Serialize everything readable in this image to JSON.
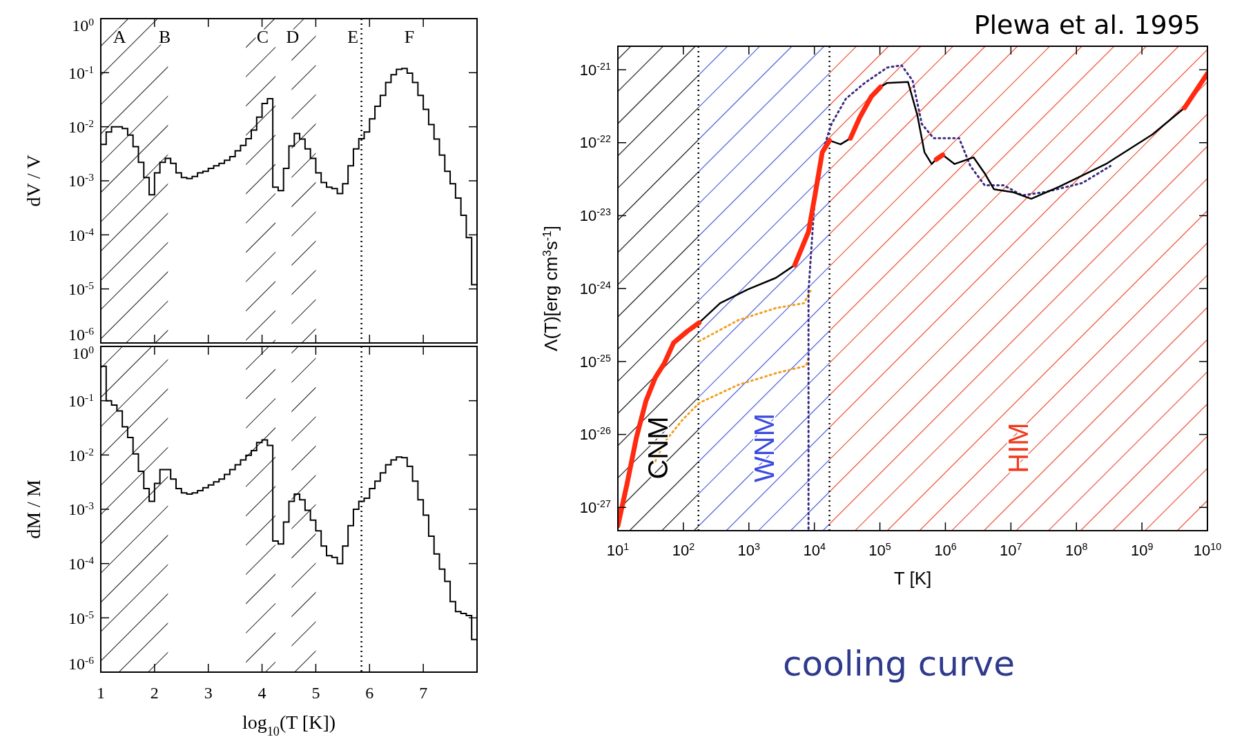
{
  "chart_data": [
    {
      "type": "histogram",
      "ylabel": "dV / V",
      "color": "#000000",
      "log": "y",
      "xlim": [
        1,
        8
      ],
      "ylim": [
        1e-06,
        1
      ],
      "tick_labels": "y",
      "xticks": [
        1,
        2,
        3,
        4,
        5,
        6,
        7
      ],
      "yticks": [
        {
          "value": 1,
          "label": "10$^{0}$"
        },
        {
          "value": 0.1,
          "label": "10$^{-1}$"
        },
        {
          "value": 0.01,
          "label": "10$^{-2}$"
        },
        {
          "value": 0.001,
          "label": "10$^{-3}$"
        },
        {
          "value": 0.0001,
          "label": "10$^{-4}$"
        },
        {
          "value": 1e-05,
          "label": "10$^{-5}$"
        },
        {
          "value": 1e-06,
          "label": "10$^{-6}$"
        }
      ],
      "bins": [
        1,
        1.1,
        1.2,
        1.3,
        1.4,
        1.5,
        1.6,
        1.7,
        1.8,
        1.9,
        2,
        2.1,
        2.2,
        2.3,
        2.4,
        2.5,
        2.6,
        2.7,
        2.8,
        2.9,
        3,
        3.1,
        3.2,
        3.3,
        3.4,
        3.5,
        3.6,
        3.7,
        3.8,
        3.9,
        4,
        4.1,
        4.2,
        4.3,
        4.4,
        4.5,
        4.6,
        4.7,
        4.8,
        4.9,
        5,
        5.1,
        5.2,
        5.3,
        5.4,
        5.5,
        5.6,
        5.7,
        5.8,
        5.9,
        6,
        6.1,
        6.2,
        6.3,
        6.4,
        6.5,
        6.6,
        6.7,
        6.8,
        6.9,
        7,
        7.1,
        7.2,
        7.3,
        7.4,
        7.5,
        7.6,
        7.7,
        7.8,
        7.9,
        8
      ],
      "values": [
        0.0047,
        0.008,
        0.01,
        0.01,
        0.0093,
        0.007,
        0.0043,
        0.0022,
        0.00115,
        0.00055,
        0.0014,
        0.0022,
        0.0026,
        0.0021,
        0.0014,
        0.00115,
        0.0011,
        0.0012,
        0.0014,
        0.0015,
        0.0017,
        0.0019,
        0.0021,
        0.0024,
        0.0028,
        0.0036,
        0.0045,
        0.006,
        0.0087,
        0.015,
        0.027,
        0.033,
        0.00076,
        0.00066,
        0.0017,
        0.0044,
        0.0075,
        0.0059,
        0.0039,
        0.0026,
        0.0014,
        0.00093,
        0.00076,
        0.00072,
        0.00058,
        0.00088,
        0.0019,
        0.0039,
        0.006,
        0.008,
        0.014,
        0.024,
        0.038,
        0.066,
        0.092,
        0.115,
        0.12,
        0.098,
        0.066,
        0.038,
        0.021,
        0.011,
        0.0059,
        0.003,
        0.0015,
        0.00088,
        0.00048,
        0.00023,
        8.9e-05,
        1.2e-05
      ],
      "bands": [
        {
          "axis": "x",
          "from": 1,
          "to": 2.25,
          "color": "#000000"
        },
        {
          "axis": "x",
          "from": 3.7,
          "to": 4.25,
          "color": "#000000"
        },
        {
          "axis": "x",
          "from": 4.55,
          "to": 5,
          "color": "#000000"
        }
      ],
      "ref_lines": [
        {
          "axis": "x",
          "value": 5.85,
          "line_style": "dotted",
          "color": "#000000"
        }
      ],
      "annotations": [
        "A",
        "B",
        "C",
        "D",
        "E",
        "F"
      ]
    },
    {
      "type": "histogram",
      "ylabel": "dM / M",
      "xlabel": "log$_{10}$(T [K])",
      "color": "#000000",
      "log": "y",
      "xlim": [
        1,
        8
      ],
      "ylim": [
        1e-06,
        1
      ],
      "xticks": [
        1,
        2,
        3,
        4,
        5,
        6,
        7
      ],
      "yticks": [
        {
          "value": 1,
          "label": "10$^{0}$"
        },
        {
          "value": 0.1,
          "label": "10$^{-1}$"
        },
        {
          "value": 0.01,
          "label": "10$^{-2}$"
        },
        {
          "value": 0.001,
          "label": "10$^{-3}$"
        },
        {
          "value": 0.0001,
          "label": "10$^{-4}$"
        },
        {
          "value": 1e-05,
          "label": "10$^{-5}$"
        },
        {
          "value": 1e-06,
          "label": "10$^{-6}$"
        }
      ],
      "bins": [
        1,
        1.1,
        1.2,
        1.3,
        1.4,
        1.5,
        1.6,
        1.7,
        1.8,
        1.9,
        2,
        2.1,
        2.2,
        2.3,
        2.4,
        2.5,
        2.6,
        2.7,
        2.8,
        2.9,
        3,
        3.1,
        3.2,
        3.3,
        3.4,
        3.5,
        3.6,
        3.7,
        3.8,
        3.9,
        4,
        4.1,
        4.2,
        4.3,
        4.4,
        4.5,
        4.6,
        4.7,
        4.8,
        4.9,
        5,
        5.1,
        5.2,
        5.3,
        5.4,
        5.5,
        5.6,
        5.7,
        5.8,
        5.9,
        6,
        6.1,
        6.2,
        6.3,
        6.4,
        6.5,
        6.6,
        6.7,
        6.8,
        6.9,
        7,
        7.1,
        7.2,
        7.3,
        7.4,
        7.5,
        7.6,
        7.7,
        7.8,
        7.9,
        8
      ],
      "values": [
        0.43,
        0.1,
        0.083,
        0.065,
        0.033,
        0.021,
        0.0105,
        0.005,
        0.0024,
        0.0014,
        0.003,
        0.0054,
        0.0054,
        0.0036,
        0.0024,
        0.002,
        0.0019,
        0.002,
        0.0022,
        0.0025,
        0.0028,
        0.0032,
        0.0036,
        0.0044,
        0.0054,
        0.0066,
        0.0081,
        0.0099,
        0.012,
        0.017,
        0.019,
        0.015,
        0.00026,
        0.00023,
        0.00058,
        0.0014,
        0.0019,
        0.0015,
        0.00096,
        0.00063,
        0.0004,
        0.00021,
        0.00014,
        0.00013,
        0.0001,
        0.00021,
        0.0005,
        0.001,
        0.0014,
        0.0016,
        0.0024,
        0.0033,
        0.0047,
        0.0066,
        0.0081,
        0.0092,
        0.0089,
        0.0062,
        0.0033,
        0.0015,
        0.00078,
        0.00032,
        0.00015,
        7.9e-05,
        4.7e-05,
        2e-05,
        1.3e-05,
        1.2e-05,
        1.1e-05,
        4e-06
      ],
      "bands": [
        {
          "axis": "x",
          "from": 1,
          "to": 2.25,
          "color": "#000000"
        },
        {
          "axis": "x",
          "from": 3.7,
          "to": 4.25,
          "color": "#000000"
        },
        {
          "axis": "x",
          "from": 4.55,
          "to": 5,
          "color": "#000000"
        }
      ],
      "ref_lines": [
        {
          "axis": "x",
          "value": 5.85,
          "line_style": "dotted",
          "color": "#000000"
        }
      ]
    },
    {
      "type": "line",
      "xlabel": "T [K]",
      "ylabel": "Λ(T)[erg cm$^{3}$s$^{-1}$]",
      "log": "xy",
      "xlim": [
        10,
        10000000000.0
      ],
      "ylim": [
        4.8e-28,
        2.1e-21
      ],
      "xticks": [
        {
          "value": 10,
          "label": "10$^{1}$"
        },
        {
          "value": 100,
          "label": "10$^{2}$"
        },
        {
          "value": 1000,
          "label": "10$^{3}$"
        },
        {
          "value": 10000,
          "label": "10$^{4}$"
        },
        {
          "value": 100000,
          "label": "10$^{5}$"
        },
        {
          "value": 1000000,
          "label": "10$^{6}$"
        },
        {
          "value": 10000000.0,
          "label": "10$^{7}$"
        },
        {
          "value": 100000000.0,
          "label": "10$^{8}$"
        },
        {
          "value": 1000000000.0,
          "label": "10$^{9}$"
        },
        {
          "value": 10000000000.0,
          "label": "10$^{10}$"
        }
      ],
      "yticks": [
        {
          "value": 1e-27,
          "label": "10$^{-27}$"
        },
        {
          "value": 1e-26,
          "label": "10$^{-26}$"
        },
        {
          "value": 1e-25,
          "label": "10$^{-25}$"
        },
        {
          "value": 1e-24,
          "label": "10$^{-24}$"
        },
        {
          "value": 1e-23,
          "label": "10$^{-23}$"
        },
        {
          "value": 1e-22,
          "label": "10$^{-22}$"
        },
        {
          "value": 1e-21,
          "label": "10$^{-21}$"
        }
      ],
      "bands": [
        {
          "axis": "x",
          "from": 10,
          "to": 170,
          "label": "CNM",
          "color": "#000000"
        },
        {
          "axis": "x",
          "from": 170,
          "to": 17000,
          "label": "WNM",
          "color": "#3a4ae0"
        },
        {
          "axis": "x",
          "from": 17000,
          "to": 10000000000.0,
          "label": "HIM",
          "color": "#f03a20"
        }
      ],
      "ref_lines": [
        {
          "axis": "x",
          "value": 170,
          "line_style": "dotted",
          "color": "#000000"
        },
        {
          "axis": "x",
          "value": 17000,
          "line_style": "dotted",
          "color": "#000000"
        }
      ],
      "series": [
        {
          "color": "#f0a020",
          "line_style": "dotted",
          "x": [
            174,
            692,
            2570,
            6920,
            8710
          ],
          "values": [
            1.9e-25,
            3.7e-25,
            5.4e-25,
            6.3e-25,
            9.3e-25
          ]
        },
        {
          "color": "#f0a020",
          "line_style": "dotted",
          "x": [
            37.2,
            51.3,
            97.7,
            174,
            692,
            2570,
            7410,
            8130
          ],
          "values": [
            4.3e-27,
            7.8e-27,
            1.6e-26,
            2.7e-26,
            4.8e-26,
            6.9e-26,
            8.7e-26,
            1.1e-25
          ]
        },
        {
          "color": "#3a2a80",
          "line_style": "dotted",
          "x": [
            8130,
            8130,
            10200,
            13200,
            18200,
            30200,
            58900,
            129000,
            214000,
            316000,
            437000,
            661000,
            1620000,
            2400000,
            3980000,
            7760000,
            14800000,
            33100000,
            123000000,
            331000000
          ],
          "values": [
            5.1e-28,
            9.1e-25,
            1.9e-23,
            7.4e-23,
            1.8e-22,
            4e-22,
            6.6e-22,
            1.07e-21,
            1.15e-21,
            7.1e-22,
            1.8e-22,
            1.15e-22,
            1.15e-22,
            4.8e-23,
            2.6e-23,
            2.6e-23,
            1.9e-23,
            2.1e-23,
            2.8e-23,
            4.8e-23
          ]
        },
        {
          "color": "#000000",
          "line_style": "solid",
          "x": [
            174,
            363,
            977,
            2570,
            5010,
            8130,
            10200,
            13200,
            17000,
            25100,
            35500,
            49000,
            74100,
            102000,
            129000,
            269000,
            372000,
            479000,
            617000,
            724000,
            912000,
            1380000,
            2690000,
            3980000,
            5500000,
            10700000,
            20400000,
            55000000,
            282000000,
            1450000000,
            4470000000,
            10000000000
          ],
          "values": [
            3.4e-25,
            6.3e-25,
            9.8e-25,
            1.4e-24,
            2.1e-24,
            null,
            null,
            null,
            1.07e-22,
            9.5e-23,
            1.15e-22,
            null,
            null,
            5.8e-22,
            6.6e-22,
            6.8e-22,
            2.4e-22,
            7.4e-23,
            5.1e-23,
            5.9e-23,
            6.8e-23,
            5.1e-23,
            6.3e-23,
            3.8e-23,
            2.3e-23,
            2.1e-23,
            1.7e-23,
            2.5e-23,
            5.1e-23,
            1.3e-22,
            3e-22,
            8.9e-22
          ]
        },
        {
          "color": "#ff2a10",
          "line_style": "solid",
          "x": [
            10,
            13.8,
            19.1,
            26.9,
            37.2,
            51.3,
            70.8,
            115,
            174,
            1000,
            5010,
            8130,
            10200,
            13200,
            17000,
            25100,
            35500,
            49000,
            74100,
            102000,
            300000,
            724000,
            912000,
            2000000000,
            4470000000,
            10000000000
          ],
          "values": [
            5.6e-28,
            2.1e-27,
            8.9e-27,
            2.9e-26,
            6e-26,
            9.5e-26,
            1.8e-25,
            2.6e-25,
            3.4e-25,
            null,
            2.1e-24,
            6e-24,
            1.9e-23,
            7.4e-23,
            1.07e-22,
            null,
            1.15e-22,
            2.2e-22,
            4.3e-22,
            5.8e-22,
            null,
            5.9e-23,
            6.8e-23,
            null,
            3e-22,
            8.9e-22
          ]
        }
      ],
      "annotations": [
        "Plewa et al. 1995",
        "cooling curve"
      ]
    }
  ]
}
